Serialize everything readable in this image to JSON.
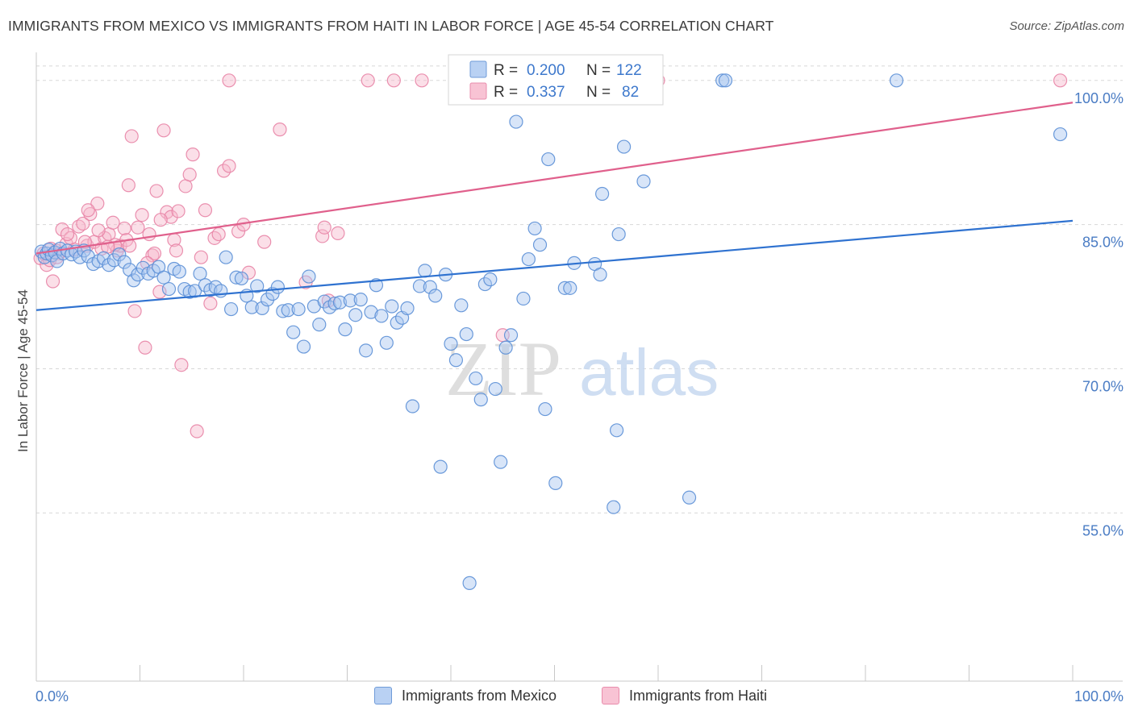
{
  "title": "IMMIGRANTS FROM MEXICO VS IMMIGRANTS FROM HAITI IN LABOR FORCE | AGE 45-54 CORRELATION CHART",
  "source": "Source: ZipAtlas.com",
  "colors": {
    "mexico_fill": "#a8c6f0",
    "mexico_stroke": "#5b8fd6",
    "mexico_line": "#2f72d0",
    "haiti_fill": "#f6b7cb",
    "haiti_stroke": "#e884a6",
    "haiti_line": "#e0608c",
    "axis_label": "#4a7cc4",
    "grid": "#d8d8d8"
  },
  "legend_top": {
    "rows": [
      {
        "r_label": "R =",
        "r_value": "0.200",
        "n_label": "N =",
        "n_value": "122"
      },
      {
        "r_label": "R =",
        "r_value": "0.337",
        "n_label": "N =",
        "n_value": "82"
      }
    ]
  },
  "legend_bottom": {
    "mexico": "Immigrants from Mexico",
    "haiti": "Immigrants from Haiti"
  },
  "watermark": {
    "zip": "ZIP",
    "atlas": "atlas"
  },
  "chart_data": {
    "type": "scatter",
    "title": "IMMIGRANTS FROM MEXICO VS IMMIGRANTS FROM HAITI IN LABOR FORCE | AGE 45-54 CORRELATION CHART",
    "xlabel": "",
    "ylabel": "In Labor Force | Age 45-54",
    "xlim": [
      0,
      100
    ],
    "ylim": [
      37.5,
      102.5
    ],
    "x_tick_labels": [
      "0.0%",
      "100.0%"
    ],
    "y_ticks": [
      55,
      70,
      85,
      100
    ],
    "y_tick_labels": [
      "55.0%",
      "70.0%",
      "85.0%",
      "100.0%"
    ],
    "grid": true,
    "series": [
      {
        "name": "Immigrants from Mexico",
        "R": 0.2,
        "N": 122,
        "trend": {
          "x": [
            0,
            100
          ],
          "y": [
            76.1,
            85.4
          ]
        },
        "points": [
          [
            0.5,
            82.2
          ],
          [
            0.8,
            81.6
          ],
          [
            1.0,
            82.0
          ],
          [
            1.2,
            82.4
          ],
          [
            1.5,
            81.8
          ],
          [
            1.8,
            82.1
          ],
          [
            2.0,
            81.2
          ],
          [
            2.3,
            82.5
          ],
          [
            2.6,
            82.0
          ],
          [
            3.0,
            82.3
          ],
          [
            3.4,
            81.9
          ],
          [
            3.8,
            82.2
          ],
          [
            4.2,
            81.6
          ],
          [
            4.6,
            82.3
          ],
          [
            5.0,
            81.7
          ],
          [
            5.5,
            80.9
          ],
          [
            6.0,
            81.2
          ],
          [
            6.5,
            81.5
          ],
          [
            7.0,
            80.8
          ],
          [
            7.5,
            81.3
          ],
          [
            8.0,
            81.9
          ],
          [
            8.5,
            81.1
          ],
          [
            9.0,
            80.3
          ],
          [
            9.4,
            79.2
          ],
          [
            9.8,
            79.8
          ],
          [
            10.3,
            80.5
          ],
          [
            10.8,
            79.9
          ],
          [
            11.3,
            80.2
          ],
          [
            11.8,
            80.6
          ],
          [
            12.3,
            79.5
          ],
          [
            12.8,
            78.3
          ],
          [
            13.3,
            80.4
          ],
          [
            13.8,
            80.1
          ],
          [
            14.3,
            78.3
          ],
          [
            14.8,
            78.0
          ],
          [
            15.3,
            78.1
          ],
          [
            15.8,
            79.9
          ],
          [
            16.3,
            78.7
          ],
          [
            16.8,
            78.2
          ],
          [
            17.3,
            78.5
          ],
          [
            17.8,
            78.1
          ],
          [
            18.3,
            81.6
          ],
          [
            18.8,
            76.2
          ],
          [
            19.3,
            79.5
          ],
          [
            19.8,
            79.4
          ],
          [
            20.3,
            77.6
          ],
          [
            20.8,
            76.4
          ],
          [
            21.3,
            78.6
          ],
          [
            21.8,
            76.3
          ],
          [
            22.3,
            77.2
          ],
          [
            22.8,
            77.8
          ],
          [
            23.3,
            78.5
          ],
          [
            23.8,
            76.0
          ],
          [
            24.3,
            76.1
          ],
          [
            24.8,
            73.8
          ],
          [
            25.3,
            76.2
          ],
          [
            25.8,
            72.3
          ],
          [
            26.3,
            79.6
          ],
          [
            26.8,
            76.5
          ],
          [
            27.3,
            74.6
          ],
          [
            27.8,
            77.0
          ],
          [
            28.3,
            76.4
          ],
          [
            28.8,
            76.8
          ],
          [
            29.3,
            76.9
          ],
          [
            29.8,
            74.1
          ],
          [
            30.3,
            77.1
          ],
          [
            30.8,
            75.6
          ],
          [
            31.3,
            77.2
          ],
          [
            31.8,
            71.9
          ],
          [
            32.3,
            75.9
          ],
          [
            32.8,
            78.7
          ],
          [
            33.3,
            75.5
          ],
          [
            33.8,
            72.7
          ],
          [
            34.3,
            76.5
          ],
          [
            34.8,
            74.8
          ],
          [
            35.3,
            75.3
          ],
          [
            35.8,
            76.3
          ],
          [
            36.3,
            66.1
          ],
          [
            37.0,
            78.6
          ],
          [
            37.5,
            80.2
          ],
          [
            38.0,
            78.5
          ],
          [
            38.5,
            77.6
          ],
          [
            39.0,
            59.8
          ],
          [
            39.5,
            79.8
          ],
          [
            40.0,
            72.6
          ],
          [
            40.5,
            70.9
          ],
          [
            41.0,
            76.6
          ],
          [
            41.5,
            73.6
          ],
          [
            41.8,
            47.7
          ],
          [
            42.4,
            69.0
          ],
          [
            42.9,
            66.8
          ],
          [
            43.3,
            78.8
          ],
          [
            43.8,
            79.3
          ],
          [
            44.3,
            67.9
          ],
          [
            44.8,
            60.3
          ],
          [
            45.3,
            72.2
          ],
          [
            45.8,
            73.5
          ],
          [
            46.3,
            95.7
          ],
          [
            47.0,
            77.3
          ],
          [
            47.5,
            81.4
          ],
          [
            48.1,
            84.6
          ],
          [
            48.6,
            82.9
          ],
          [
            49.1,
            65.8
          ],
          [
            49.4,
            91.8
          ],
          [
            50.1,
            58.1
          ],
          [
            51.0,
            78.4
          ],
          [
            51.5,
            78.4
          ],
          [
            51.9,
            81.0
          ],
          [
            53.9,
            80.9
          ],
          [
            54.4,
            79.8
          ],
          [
            54.6,
            88.2
          ],
          [
            55.7,
            55.6
          ],
          [
            56.0,
            63.6
          ],
          [
            56.2,
            84.0
          ],
          [
            56.7,
            93.1
          ],
          [
            58.6,
            89.5
          ],
          [
            59.0,
            100.0
          ],
          [
            63.0,
            56.6
          ],
          [
            66.2,
            100.0
          ],
          [
            66.5,
            100.0
          ],
          [
            83.0,
            100.0
          ],
          [
            98.8,
            94.4
          ]
        ]
      },
      {
        "name": "Immigrants from Haiti",
        "R": 0.337,
        "N": 82,
        "trend": {
          "x": [
            0,
            100
          ],
          "y": [
            82.0,
            97.7
          ]
        },
        "points": [
          [
            0.4,
            81.5
          ],
          [
            0.7,
            82.0
          ],
          [
            1.0,
            80.8
          ],
          [
            1.3,
            81.3
          ],
          [
            1.6,
            79.1
          ],
          [
            1.9,
            82.3
          ],
          [
            2.2,
            82.0
          ],
          [
            2.5,
            84.5
          ],
          [
            2.9,
            83.0
          ],
          [
            3.3,
            83.6
          ],
          [
            3.7,
            82.4
          ],
          [
            4.1,
            84.8
          ],
          [
            4.5,
            85.1
          ],
          [
            4.9,
            82.8
          ],
          [
            5.2,
            86.1
          ],
          [
            5.6,
            83.2
          ],
          [
            5.9,
            87.2
          ],
          [
            6.3,
            82.5
          ],
          [
            6.6,
            83.6
          ],
          [
            7.0,
            84.0
          ],
          [
            7.4,
            85.2
          ],
          [
            7.8,
            82.3
          ],
          [
            8.1,
            82.8
          ],
          [
            8.5,
            84.6
          ],
          [
            8.9,
            89.1
          ],
          [
            9.2,
            94.2
          ],
          [
            9.5,
            76.0
          ],
          [
            9.8,
            84.7
          ],
          [
            10.2,
            86.0
          ],
          [
            10.5,
            72.2
          ],
          [
            10.9,
            84.0
          ],
          [
            11.2,
            81.8
          ],
          [
            11.6,
            88.5
          ],
          [
            11.9,
            78.0
          ],
          [
            12.3,
            94.8
          ],
          [
            12.6,
            86.3
          ],
          [
            13.0,
            85.8
          ],
          [
            13.3,
            83.4
          ],
          [
            13.7,
            86.4
          ],
          [
            14.0,
            70.4
          ],
          [
            14.4,
            89.0
          ],
          [
            14.8,
            90.2
          ],
          [
            15.1,
            92.3
          ],
          [
            15.5,
            63.5
          ],
          [
            15.9,
            81.6
          ],
          [
            16.3,
            86.5
          ],
          [
            16.8,
            76.8
          ],
          [
            17.2,
            83.6
          ],
          [
            17.6,
            84.0
          ],
          [
            18.1,
            90.6
          ],
          [
            18.6,
            91.1
          ],
          [
            19.5,
            84.3
          ],
          [
            20.0,
            85.0
          ],
          [
            20.5,
            80.0
          ],
          [
            22.0,
            83.2
          ],
          [
            23.5,
            94.9
          ],
          [
            26.0,
            79.0
          ],
          [
            27.6,
            83.8
          ],
          [
            27.8,
            84.7
          ],
          [
            28.2,
            77.1
          ],
          [
            29.1,
            84.1
          ],
          [
            34.5,
            100.0
          ],
          [
            37.2,
            100.0
          ],
          [
            45.0,
            73.5
          ],
          [
            60.0,
            100.0
          ],
          [
            98.8,
            100.0
          ],
          [
            18.6,
            100.0
          ],
          [
            32.0,
            100.0
          ],
          [
            6.0,
            84.4
          ],
          [
            7.6,
            82.9
          ],
          [
            3.0,
            84.0
          ],
          [
            2.0,
            81.6
          ],
          [
            1.4,
            82.5
          ],
          [
            4.7,
            83.2
          ],
          [
            8.7,
            83.4
          ],
          [
            11.4,
            82.0
          ],
          [
            9.0,
            82.8
          ],
          [
            5.0,
            86.5
          ],
          [
            6.9,
            82.7
          ],
          [
            12.0,
            85.5
          ],
          [
            13.5,
            82.3
          ],
          [
            10.7,
            81.0
          ]
        ]
      }
    ]
  }
}
